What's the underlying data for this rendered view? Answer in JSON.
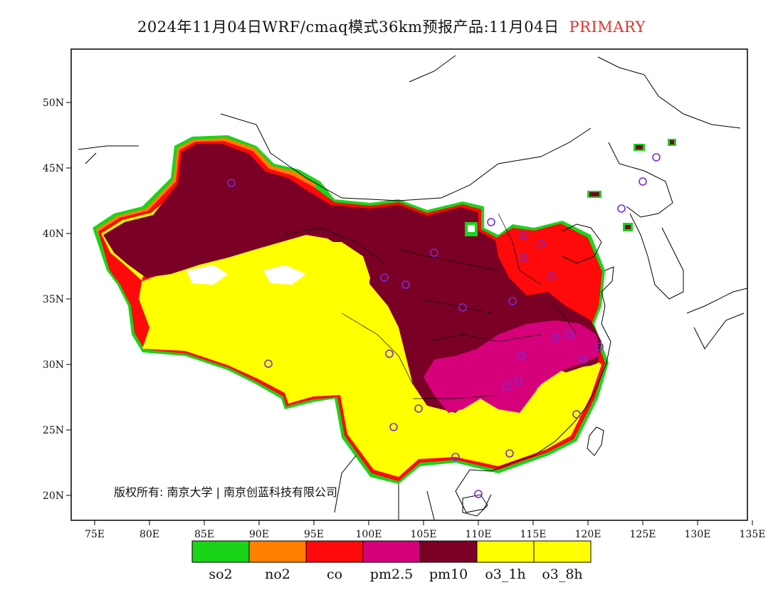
{
  "title": {
    "main": "2024年11月04日WRF/cmaq模式36km预报产品:11月04日",
    "tag": "PRIMARY",
    "tag_color": "#e0312e"
  },
  "map": {
    "lon_ticks": [
      "75E",
      "80E",
      "85E",
      "90E",
      "95E",
      "100E",
      "105E",
      "110E",
      "115E",
      "120E",
      "125E",
      "130E",
      "135E"
    ],
    "lat_ticks": [
      "50N",
      "45N",
      "40N",
      "35N",
      "30N",
      "25N",
      "20N"
    ],
    "copyright": "版权所有: 南京大学 | 南京创蓝科技有限公司",
    "site_marker_color": "#7a2bd6"
  },
  "legend": {
    "items": [
      {
        "label": "so2",
        "color": "#19d419"
      },
      {
        "label": "no2",
        "color": "#ff7f00"
      },
      {
        "label": "co",
        "color": "#ff0a0a"
      },
      {
        "label": "pm2.5",
        "color": "#d6007a"
      },
      {
        "label": "pm10",
        "color": "#7b0026"
      },
      {
        "label": "o3_1h",
        "color": "#ffff00"
      },
      {
        "label": "o3_8h",
        "color": "#ffff00"
      }
    ]
  }
}
